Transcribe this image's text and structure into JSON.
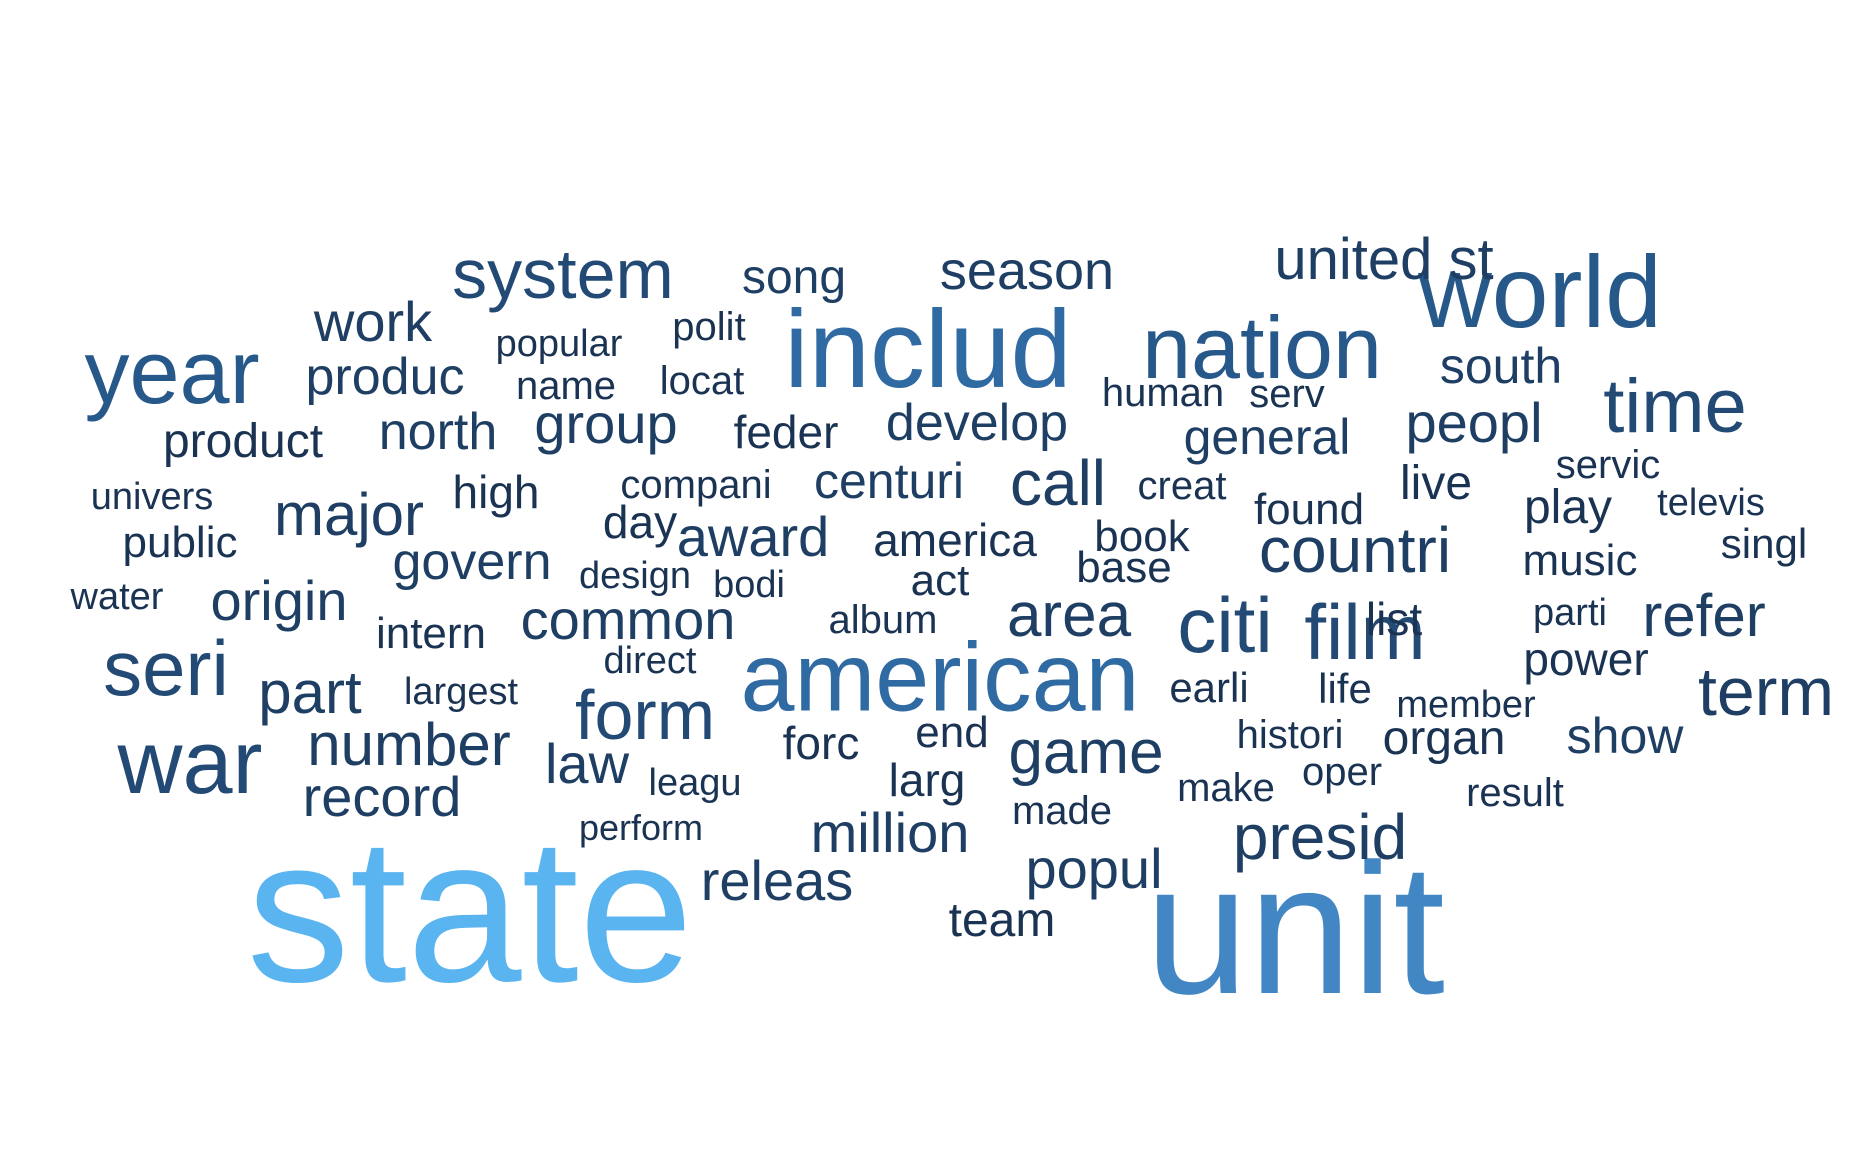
{
  "colors": {
    "darkest": "#1a3352",
    "dark": "#1e3f63",
    "mid_dark": "#224a74",
    "mid": "#27588a",
    "mid_light": "#2f6aa3",
    "light": "#4287c4",
    "lightest": "#5ab4f0"
  },
  "words": [
    {
      "text": "state",
      "tone": "lightest"
    },
    {
      "text": "unit",
      "tone": "light"
    },
    {
      "text": "includ",
      "tone": "mid_light"
    },
    {
      "text": "american",
      "tone": "mid_light"
    },
    {
      "text": "world",
      "tone": "mid"
    },
    {
      "text": "nation",
      "tone": "mid"
    },
    {
      "text": "year",
      "tone": "mid"
    },
    {
      "text": "war",
      "tone": "mid_dark"
    },
    {
      "text": "citi",
      "tone": "mid_dark"
    },
    {
      "text": "film",
      "tone": "mid_dark"
    },
    {
      "text": "time",
      "tone": "mid_dark"
    },
    {
      "text": "seri",
      "tone": "mid_dark"
    },
    {
      "text": "form",
      "tone": "mid_dark"
    },
    {
      "text": "system",
      "tone": "mid_dark"
    },
    {
      "text": "term",
      "tone": "dark"
    },
    {
      "text": "countri",
      "tone": "dark"
    },
    {
      "text": "call",
      "tone": "dark"
    },
    {
      "text": "presid",
      "tone": "dark"
    },
    {
      "text": "game",
      "tone": "dark"
    },
    {
      "text": "area",
      "tone": "dark"
    },
    {
      "text": "number",
      "tone": "dark"
    },
    {
      "text": "part",
      "tone": "dark"
    },
    {
      "text": "refer",
      "tone": "dark"
    },
    {
      "text": "major",
      "tone": "dark"
    },
    {
      "text": "origin",
      "tone": "dark"
    },
    {
      "text": "peopl",
      "tone": "dark"
    },
    {
      "text": "common",
      "tone": "dark"
    },
    {
      "text": "record",
      "tone": "dark"
    },
    {
      "text": "million",
      "tone": "dark"
    },
    {
      "text": "popul",
      "tone": "dark"
    },
    {
      "text": "releas",
      "tone": "dark"
    },
    {
      "text": "award",
      "tone": "dark"
    },
    {
      "text": "develop",
      "tone": "dark"
    },
    {
      "text": "govern",
      "tone": "dark"
    },
    {
      "text": "work",
      "tone": "dark"
    },
    {
      "text": "united st",
      "tone": "dark"
    },
    {
      "text": "season",
      "tone": "dark"
    },
    {
      "text": "produc",
      "tone": "dark"
    },
    {
      "text": "law",
      "tone": "dark"
    },
    {
      "text": "group",
      "tone": "dark"
    },
    {
      "text": "north",
      "tone": "dark"
    },
    {
      "text": "general",
      "tone": "dark"
    },
    {
      "text": "south",
      "tone": "dark"
    },
    {
      "text": "show",
      "tone": "dark"
    },
    {
      "text": "centuri",
      "tone": "dark"
    },
    {
      "text": "song",
      "tone": "dark"
    },
    {
      "text": "america",
      "tone": "darkest"
    },
    {
      "text": "team",
      "tone": "darkest"
    },
    {
      "text": "play",
      "tone": "darkest"
    },
    {
      "text": "product",
      "tone": "darkest"
    },
    {
      "text": "organ",
      "tone": "darkest"
    },
    {
      "text": "power",
      "tone": "darkest"
    },
    {
      "text": "day",
      "tone": "darkest"
    },
    {
      "text": "feder",
      "tone": "darkest"
    },
    {
      "text": "forc",
      "tone": "darkest"
    },
    {
      "text": "larg",
      "tone": "darkest"
    },
    {
      "text": "live",
      "tone": "darkest"
    },
    {
      "text": "high",
      "tone": "darkest"
    },
    {
      "text": "list",
      "tone": "darkest"
    },
    {
      "text": "public",
      "tone": "darkest"
    },
    {
      "text": "music",
      "tone": "darkest"
    },
    {
      "text": "base",
      "tone": "darkest"
    },
    {
      "text": "found",
      "tone": "darkest"
    },
    {
      "text": "book",
      "tone": "darkest"
    },
    {
      "text": "singl",
      "tone": "darkest"
    },
    {
      "text": "end",
      "tone": "darkest"
    },
    {
      "text": "act",
      "tone": "darkest"
    },
    {
      "text": "intern",
      "tone": "darkest"
    },
    {
      "text": "creat",
      "tone": "darkest"
    },
    {
      "text": "human",
      "tone": "darkest"
    },
    {
      "text": "serv",
      "tone": "darkest"
    },
    {
      "text": "servic",
      "tone": "darkest"
    },
    {
      "text": "histori",
      "tone": "darkest"
    },
    {
      "text": "earli",
      "tone": "darkest"
    },
    {
      "text": "life",
      "tone": "darkest"
    },
    {
      "text": "album",
      "tone": "darkest"
    },
    {
      "text": "make",
      "tone": "darkest"
    },
    {
      "text": "made",
      "tone": "darkest"
    },
    {
      "text": "oper",
      "tone": "darkest"
    },
    {
      "text": "result",
      "tone": "darkest"
    },
    {
      "text": "polit",
      "tone": "darkest"
    },
    {
      "text": "locat",
      "tone": "darkest"
    },
    {
      "text": "name",
      "tone": "darkest"
    },
    {
      "text": "popular",
      "tone": "darkest"
    },
    {
      "text": "compani",
      "tone": "darkest"
    },
    {
      "text": "univers",
      "tone": "darkest"
    },
    {
      "text": "televis",
      "tone": "darkest"
    },
    {
      "text": "parti",
      "tone": "darkest"
    },
    {
      "text": "member",
      "tone": "darkest"
    },
    {
      "text": "water",
      "tone": "darkest"
    },
    {
      "text": "design",
      "tone": "darkest"
    },
    {
      "text": "bodi",
      "tone": "darkest"
    },
    {
      "text": "direct",
      "tone": "darkest"
    },
    {
      "text": "largest",
      "tone": "darkest"
    },
    {
      "text": "leagu",
      "tone": "darkest"
    },
    {
      "text": "perform",
      "tone": "darkest"
    }
  ]
}
